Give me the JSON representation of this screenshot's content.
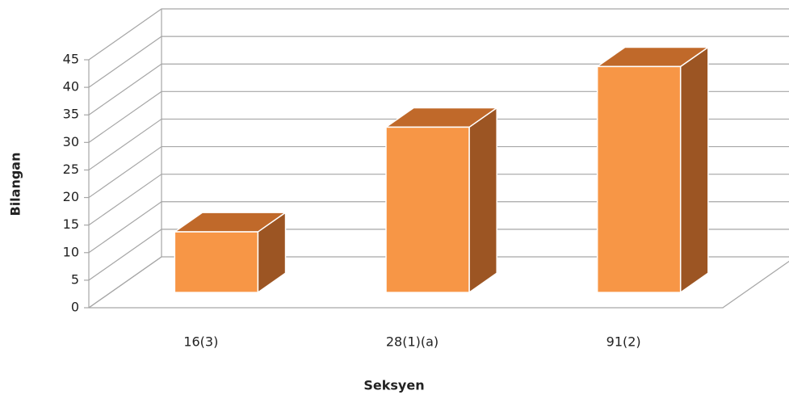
{
  "chart_data": {
    "type": "bar",
    "x_label": "Seksyen",
    "y_label": "Bilangan",
    "categories": [
      "16(3)",
      "28(1)(a)",
      "91(2)"
    ],
    "values": [
      11,
      30,
      41
    ],
    "color": "#f79646",
    "ylim": [
      0,
      45
    ],
    "yticks": [
      0,
      5,
      10,
      15,
      20,
      25,
      30,
      35,
      40,
      45
    ],
    "grid": true
  }
}
